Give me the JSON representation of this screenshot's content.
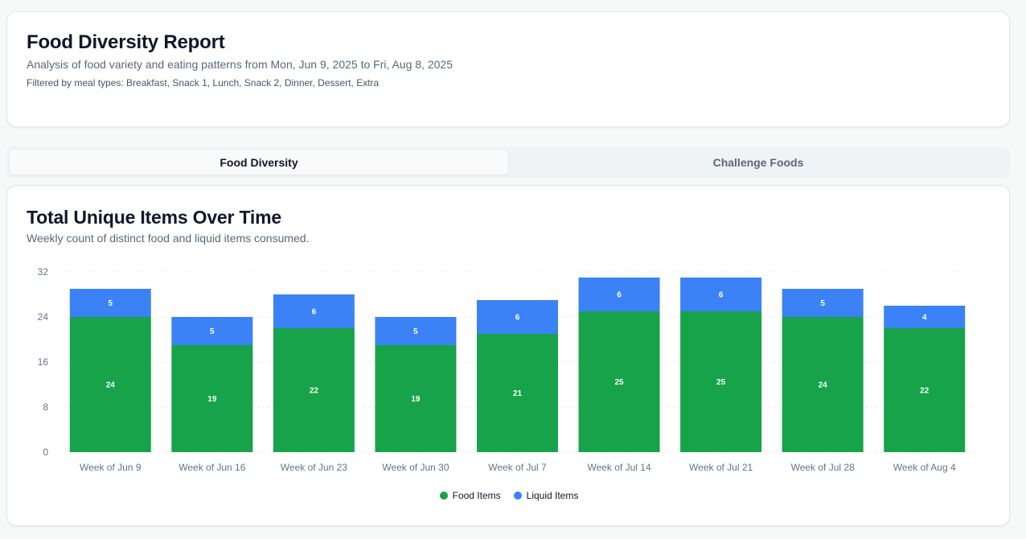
{
  "header": {
    "title": "Food Diversity Report",
    "subtitle": "Analysis of food variety and eating patterns from Mon, Jun 9, 2025 to Fri, Aug 8, 2025",
    "filters": "Filtered by meal types: Breakfast, Snack 1, Lunch, Snack 2, Dinner, Dessert, Extra"
  },
  "tabs": [
    {
      "label": "Food Diversity",
      "active": true
    },
    {
      "label": "Challenge Foods",
      "active": false
    }
  ],
  "chart_card": {
    "title": "Total Unique Items Over Time",
    "subtitle": "Weekly count of distinct food and liquid items consumed."
  },
  "chart_data": {
    "type": "bar",
    "stacked": true,
    "categories": [
      "Week of Jun 9",
      "Week of Jun 16",
      "Week of Jun 23",
      "Week of Jun 30",
      "Week of Jul 7",
      "Week of Jul 14",
      "Week of Jul 21",
      "Week of Jul 28",
      "Week of Aug 4"
    ],
    "series": [
      {
        "name": "Food Items",
        "values": [
          24,
          19,
          22,
          19,
          21,
          25,
          25,
          24,
          22
        ],
        "color": "#16a34a"
      },
      {
        "name": "Liquid Items",
        "values": [
          5,
          5,
          6,
          5,
          6,
          6,
          6,
          5,
          4
        ],
        "color": "#3b82f6"
      }
    ],
    "ylim": [
      0,
      32
    ],
    "yticks": [
      0,
      8,
      16,
      24,
      32
    ],
    "grid": true,
    "legend": "bottom-center",
    "xlabel": "",
    "ylabel": ""
  }
}
